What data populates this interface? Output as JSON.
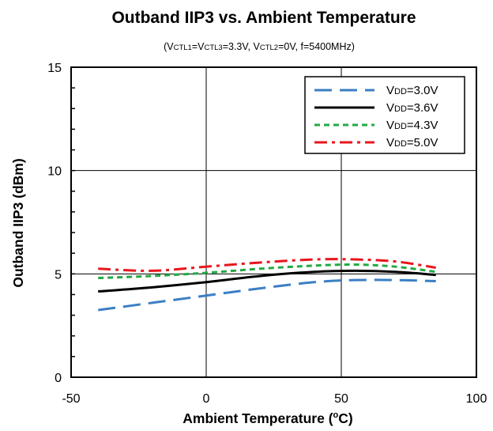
{
  "chart_data": {
    "type": "line",
    "title": "Outband IIP3 vs. Ambient Temperature",
    "subtitle": {
      "open": "(V",
      "ctl1": "CTL1",
      "eq1": "=V",
      "ctl3": "CTL3",
      "mid": "=3.3V, V",
      "ctl2": "CTL2",
      "rest": "=0V, f=5400MHz)"
    },
    "xlabel": {
      "main": "Ambient Temperature (",
      "sup": "o",
      "end": "C)"
    },
    "ylabel": "Outband IIP3 (dBm)",
    "xlim": [
      -50,
      100
    ],
    "ylim": [
      0,
      15
    ],
    "x_ticks": [
      "-50",
      "0",
      "50",
      "100"
    ],
    "y_ticks": [
      "0",
      "5",
      "10",
      "15"
    ],
    "grid": true,
    "legend_position": "top-right",
    "series": [
      {
        "name": {
          "prefix": "V",
          "sub": "DD",
          "suffix": "=3.0V"
        },
        "color": "#3b7fc4",
        "style": "dashed",
        "x": [
          -40,
          -20,
          0,
          20,
          40,
          55,
          70,
          85
        ],
        "y": [
          3.25,
          3.6,
          3.95,
          4.3,
          4.6,
          4.7,
          4.7,
          4.65
        ]
      },
      {
        "name": {
          "prefix": "V",
          "sub": "DD",
          "suffix": "=3.6V"
        },
        "color": "#000000",
        "style": "solid",
        "x": [
          -40,
          -20,
          0,
          20,
          40,
          55,
          70,
          85
        ],
        "y": [
          4.15,
          4.35,
          4.6,
          4.9,
          5.1,
          5.15,
          5.1,
          4.95
        ]
      },
      {
        "name": {
          "prefix": "V",
          "sub": "DD",
          "suffix": "=4.3V"
        },
        "color": "#22aa44",
        "style": "dotted",
        "x": [
          -40,
          -20,
          0,
          20,
          40,
          55,
          70,
          85
        ],
        "y": [
          4.8,
          4.9,
          5.05,
          5.25,
          5.4,
          5.45,
          5.35,
          5.1
        ]
      },
      {
        "name": {
          "prefix": "V",
          "sub": "DD",
          "suffix": "=5.0V"
        },
        "color": "#e8161c",
        "style": "dashdot",
        "x": [
          -40,
          -20,
          0,
          20,
          40,
          55,
          70,
          85
        ],
        "y": [
          5.25,
          5.15,
          5.35,
          5.55,
          5.7,
          5.7,
          5.6,
          5.3
        ]
      }
    ]
  }
}
